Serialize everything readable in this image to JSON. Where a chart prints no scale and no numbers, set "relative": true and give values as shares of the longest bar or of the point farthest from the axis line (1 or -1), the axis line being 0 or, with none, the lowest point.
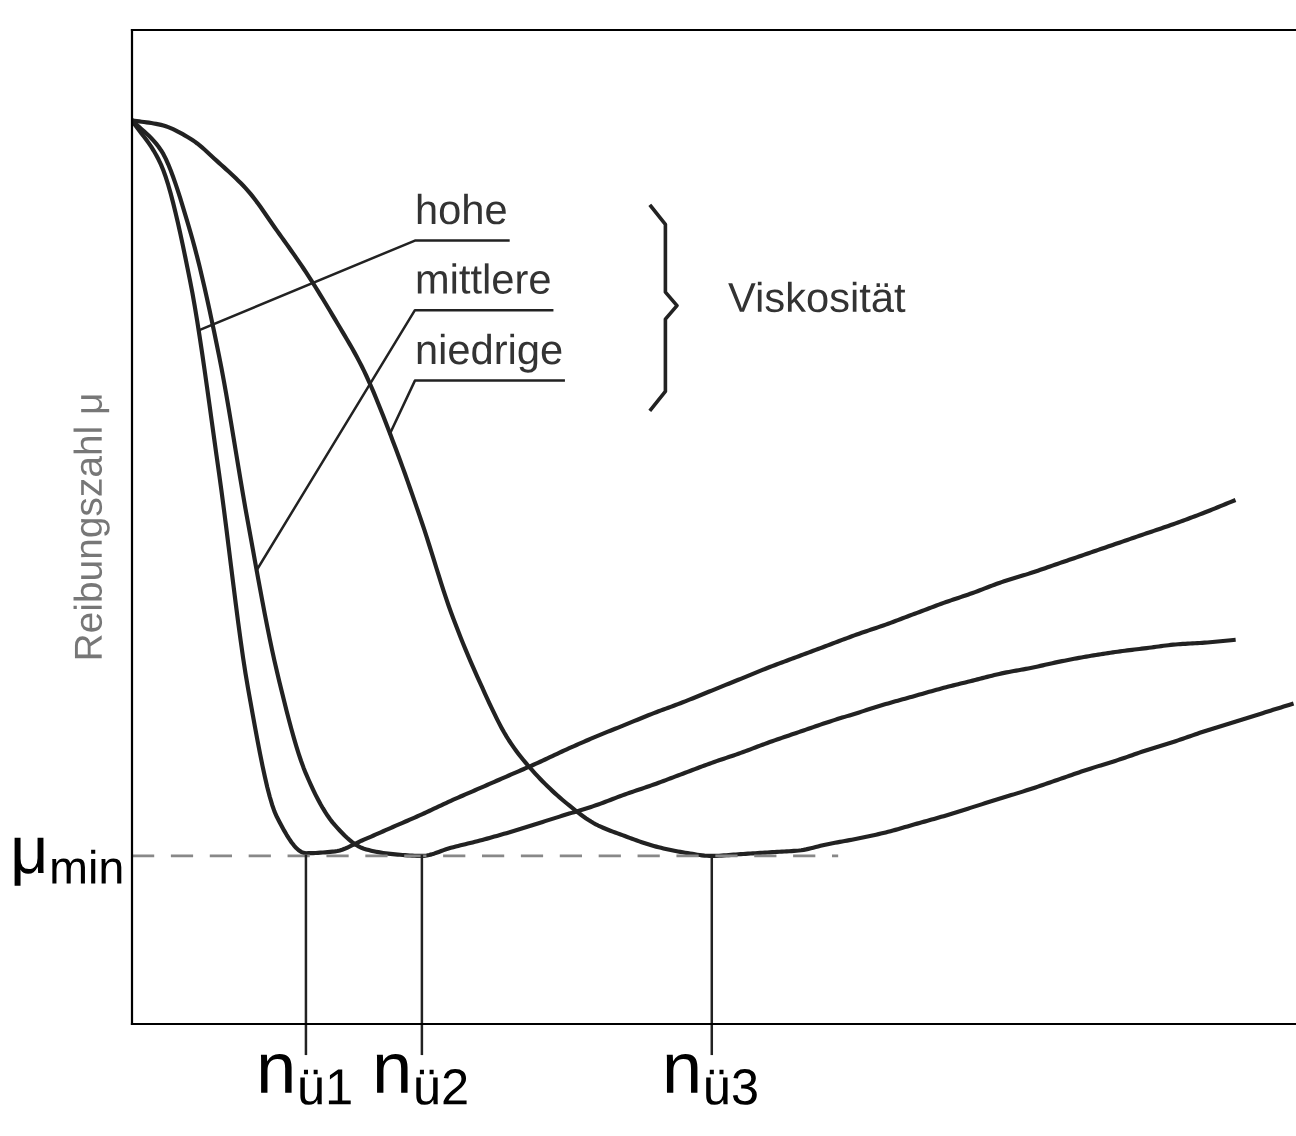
{
  "chart_data": {
    "type": "line",
    "relative": true,
    "ylabel": "Reibungszahl μ",
    "categories": [
      null,
      null,
      null,
      null,
      null,
      null,
      "n$_{ü1}$",
      null,
      null,
      null,
      "n$_{ü2}$",
      null,
      null,
      null,
      null,
      null,
      null,
      null,
      null,
      null,
      "n$_{ü3}$",
      null,
      null,
      null,
      null,
      null,
      null,
      null,
      null,
      null,
      null,
      null,
      null,
      null,
      null,
      null,
      null,
      null,
      null,
      null,
      null
    ],
    "series": [
      {
        "color": "#222222",
        "values": [
          1.0,
          0.951,
          0.823,
          0.61,
          0.372,
          0.229,
          0.189,
          0.191,
          0.204,
          0.218,
          0.232,
          0.247,
          0.261,
          0.275,
          0.289,
          0.304,
          0.318,
          0.331,
          0.344,
          0.356,
          0.369,
          0.382,
          0.395,
          0.407,
          0.419,
          0.431,
          0.442,
          0.454,
          0.466,
          0.477,
          0.489,
          0.499,
          0.51,
          0.521,
          0.532,
          0.543,
          0.554,
          0.566,
          0.579,
          null,
          null
        ]
      },
      {
        "color": "#222222",
        "values": [
          1.0,
          0.967,
          0.878,
          0.74,
          0.555,
          0.39,
          0.277,
          0.22,
          0.194,
          0.188,
          0.186,
          0.195,
          0.203,
          0.212,
          0.222,
          0.232,
          0.242,
          0.254,
          0.265,
          0.277,
          0.289,
          0.3,
          0.312,
          0.323,
          0.334,
          0.344,
          0.354,
          0.363,
          0.372,
          0.38,
          0.388,
          0.394,
          0.401,
          0.407,
          0.412,
          0.416,
          0.42,
          0.422,
          0.425,
          null,
          null
        ]
      },
      {
        "color": "#222222",
        "values": [
          1.0,
          0.995,
          0.98,
          0.953,
          0.922,
          0.878,
          0.832,
          0.78,
          0.723,
          0.645,
          0.555,
          0.456,
          0.378,
          0.314,
          0.274,
          0.244,
          0.221,
          0.208,
          0.197,
          0.19,
          0.186,
          0.188,
          0.19,
          0.192,
          0.199,
          0.205,
          0.212,
          0.221,
          0.23,
          0.24,
          0.25,
          0.26,
          0.271,
          0.282,
          0.292,
          0.303,
          0.313,
          0.324,
          0.334,
          0.344,
          0.354
        ]
      }
    ],
    "ref_lines": [
      {
        "axis": "y",
        "value": 0.186,
        "label": "μ$_{min}$",
        "color": "#888888",
        "line_style": "dashed"
      },
      {
        "axis": "x",
        "value": "n$_{ü1}$",
        "label": null,
        "color": "#222222"
      },
      {
        "axis": "x",
        "value": "n$_{ü2}$",
        "label": null,
        "color": "#222222"
      },
      {
        "axis": "x",
        "value": "n$_{ü3}$",
        "label": null,
        "color": "#222222"
      }
    ],
    "annotations": [
      "hohe",
      "mittlere",
      "niedrige",
      "Viskosität"
    ],
    "grid": false,
    "legend": false,
    "marker": "none",
    "line_style": "solid"
  }
}
